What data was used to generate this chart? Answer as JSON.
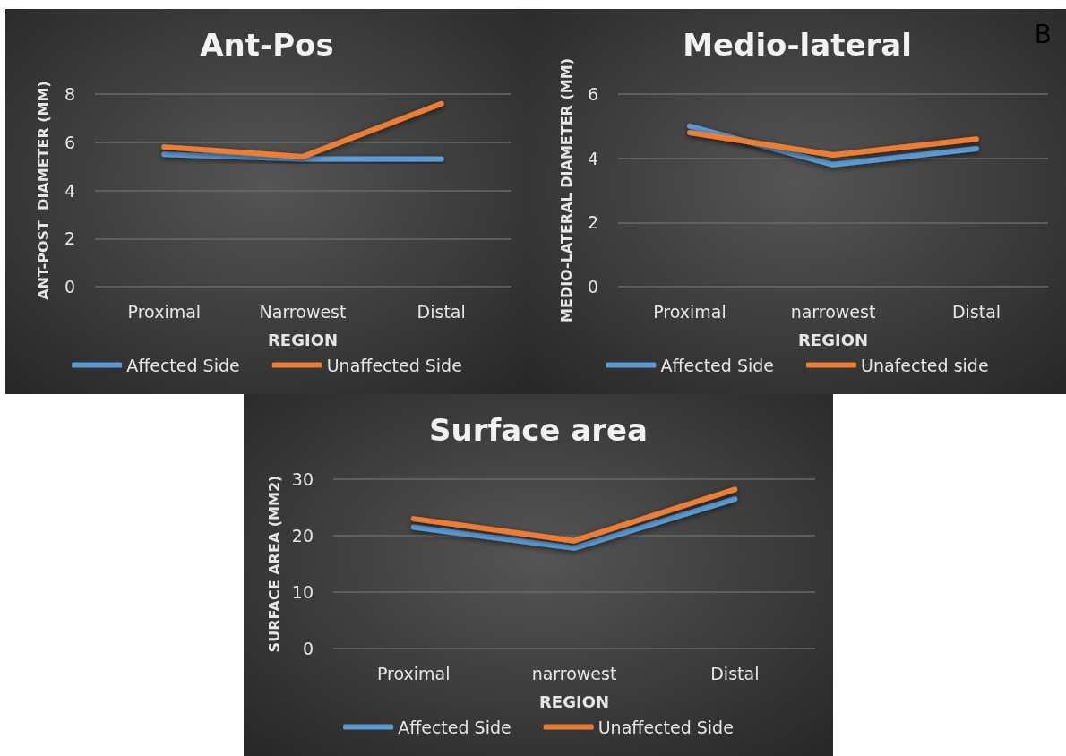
{
  "chart_data": [
    {
      "type": "line",
      "title": "Ant-Pos",
      "xlabel": "REGION",
      "ylabel": "ANT-POST  DIAMETER (MM)",
      "categories": [
        "Proximal",
        "Narrowest",
        "Distal"
      ],
      "series": [
        {
          "name": "Affected Side",
          "color": "#5b9bd5",
          "values": [
            5.5,
            5.3,
            5.3
          ]
        },
        {
          "name": "Unaffected Side",
          "color": "#ed7d31",
          "values": [
            5.8,
            5.4,
            7.6
          ]
        }
      ],
      "ylim": [
        0,
        8
      ],
      "yticks": [
        0,
        2,
        4,
        6,
        8
      ],
      "grid": "y",
      "legend": "bottom",
      "marker": "none",
      "line_style": "solid"
    },
    {
      "type": "line",
      "title": "Medio-lateral",
      "xlabel": "REGION",
      "ylabel": "MEDIO-LATERAL DIAMETER (MM)",
      "annotations": [
        "B"
      ],
      "categories": [
        "Proximal",
        "narrowest",
        "Distal"
      ],
      "series": [
        {
          "name": "Affected Side",
          "color": "#5b9bd5",
          "values": [
            5.0,
            3.8,
            4.3
          ]
        },
        {
          "name": "Unafected side",
          "color": "#ed7d31",
          "values": [
            4.8,
            4.1,
            4.6
          ]
        }
      ],
      "ylim": [
        0,
        6
      ],
      "yticks": [
        0,
        2,
        4,
        6
      ],
      "grid": "y",
      "legend": "bottom",
      "marker": "none",
      "line_style": "solid"
    },
    {
      "type": "line",
      "title": "Surface area",
      "xlabel": "REGION",
      "ylabel": "SURFACE AREA (MM2)",
      "categories": [
        "Proximal",
        "narrowest",
        "Distal"
      ],
      "series": [
        {
          "name": "Affected Side",
          "color": "#5b9bd5",
          "values": [
            21.5,
            17.8,
            26.5
          ]
        },
        {
          "name": "Unaffected Side",
          "color": "#ed7d31",
          "values": [
            23.0,
            19.1,
            28.2
          ]
        }
      ],
      "ylim": [
        0,
        30
      ],
      "yticks": [
        0,
        10,
        20,
        30
      ],
      "grid": "y",
      "legend": "bottom",
      "marker": "none",
      "line_style": "solid"
    }
  ]
}
